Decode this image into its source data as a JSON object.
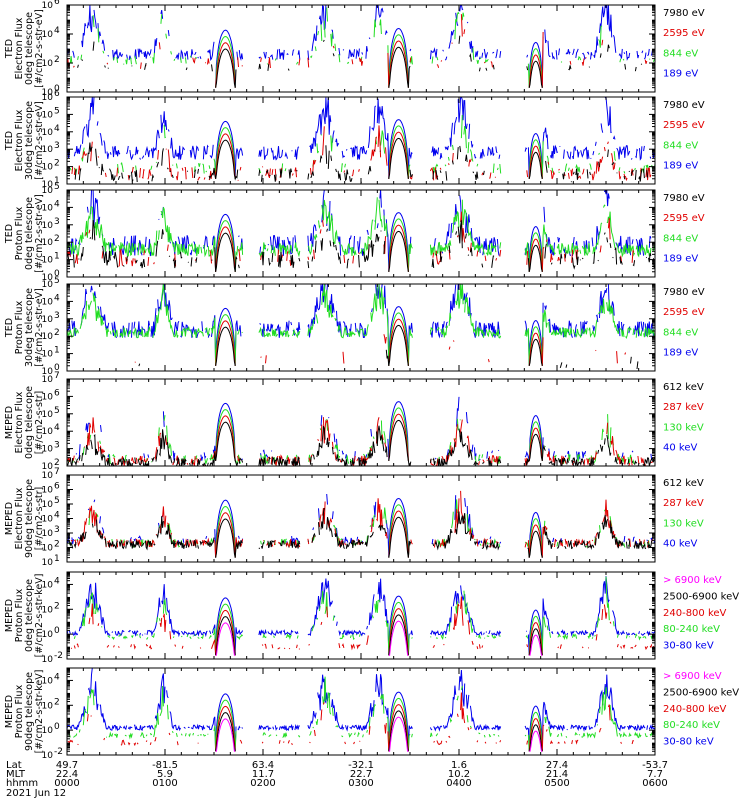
{
  "colors": {
    "black": "#000000",
    "red": "#e00000",
    "green": "#22dd22",
    "blue": "#0000ee",
    "magenta": "#ff00ff",
    "axis": "#000000"
  },
  "chart_data": [
    {
      "type": "line",
      "title": [
        "TED",
        "Electron Flux",
        "0deg telescope",
        "[#/cm2-s-str-eV]"
      ],
      "yscale": "log",
      "yticks": [
        "10",
        "10",
        "10",
        "10"
      ],
      "ytick_exps": [
        "0",
        "2",
        "4",
        "6"
      ],
      "ylim": [
        1,
        1000000
      ],
      "series": [
        {
          "name": "7980 eV",
          "color": "black",
          "base": 1.7,
          "noise": 0.3,
          "density": 0.25
        },
        {
          "name": "2595 eV",
          "color": "red",
          "base": 2.0,
          "noise": 0.4,
          "density": 0.3
        },
        {
          "name": "844 eV",
          "color": "green",
          "base": 2.2,
          "noise": 0.3,
          "density": 0.35
        },
        {
          "name": "189 eV",
          "color": "blue",
          "base": 2.6,
          "noise": 0.4,
          "density": 0.7
        }
      ]
    },
    {
      "type": "line",
      "title": [
        "TED",
        "Electron Flux",
        "30deg telescope",
        "[#/cm2-s-str-eV]"
      ],
      "yscale": "log",
      "yticks": [
        "10",
        "10",
        "10",
        "10",
        "10",
        "10"
      ],
      "ytick_exps": [
        "1",
        "2",
        "3",
        "4",
        "5",
        "6"
      ],
      "ylim": [
        10,
        1000000
      ],
      "series": [
        {
          "name": "7980 eV",
          "color": "black",
          "base": 1.5,
          "noise": 0.4,
          "density": 0.5
        },
        {
          "name": "2595 eV",
          "color": "red",
          "base": 1.6,
          "noise": 0.4,
          "density": 0.5
        },
        {
          "name": "844 eV",
          "color": "green",
          "base": 1.9,
          "noise": 0.3,
          "density": 0.4
        },
        {
          "name": "189 eV",
          "color": "blue",
          "base": 2.8,
          "noise": 0.4,
          "density": 0.8
        }
      ]
    },
    {
      "type": "line",
      "title": [
        "TED",
        "Proton Flux",
        "0deg telescope",
        "[#/cm2-s-str-eV]"
      ],
      "yscale": "log",
      "yticks": [
        "10",
        "10",
        "10",
        "10",
        "10",
        "10"
      ],
      "ytick_exps": [
        "0",
        "1",
        "2",
        "3",
        "4",
        "5"
      ],
      "ylim": [
        1,
        100000
      ],
      "series": [
        {
          "name": "7980 eV",
          "color": "black",
          "base": 1.0,
          "noise": 0.5,
          "density": 0.5
        },
        {
          "name": "2595 eV",
          "color": "red",
          "base": 1.1,
          "noise": 0.5,
          "density": 0.4
        },
        {
          "name": "844 eV",
          "color": "green",
          "base": 1.6,
          "noise": 0.4,
          "density": 0.9
        },
        {
          "name": "189 eV",
          "color": "blue",
          "base": 1.8,
          "noise": 0.6,
          "density": 0.7
        }
      ]
    },
    {
      "type": "line",
      "title": [
        "TED",
        "Proton Flux",
        "30deg telescope",
        "[#/cm2-s-str-eV]"
      ],
      "yscale": "log",
      "yticks": [
        "10",
        "10",
        "10",
        "10",
        "10",
        "10"
      ],
      "ytick_exps": [
        "0",
        "1",
        "2",
        "3",
        "4",
        "5"
      ],
      "ylim": [
        1,
        100000
      ],
      "series": [
        {
          "name": "7980 eV",
          "color": "black",
          "base": 0.5,
          "noise": 0.4,
          "density": 0.15
        },
        {
          "name": "2595 eV",
          "color": "red",
          "base": 0.8,
          "noise": 0.4,
          "density": 0.15
        },
        {
          "name": "844 eV",
          "color": "green",
          "base": 2.2,
          "noise": 0.3,
          "density": 0.9
        },
        {
          "name": "189 eV",
          "color": "blue",
          "base": 2.4,
          "noise": 0.5,
          "density": 0.8
        }
      ]
    },
    {
      "type": "line",
      "title": [
        "MEPED",
        "Electron Flux",
        "0deg telescope",
        "[#/cm2-s-str]"
      ],
      "yscale": "log",
      "yticks": [
        "10",
        "10",
        "10",
        "10",
        "10",
        "10"
      ],
      "ytick_exps": [
        "2",
        "3",
        "4",
        "5",
        "6",
        "7"
      ],
      "ylim": [
        100,
        10000000
      ],
      "series": [
        {
          "name": "612 keV",
          "color": "black",
          "base": 2.2,
          "noise": 0.3,
          "density": 0.8
        },
        {
          "name": "287 keV",
          "color": "red",
          "base": 2.3,
          "noise": 0.3,
          "density": 0.7
        },
        {
          "name": "130 keV",
          "color": "green",
          "base": 2.4,
          "noise": 0.3,
          "density": 0.5
        },
        {
          "name": "40 keV",
          "color": "blue",
          "base": 2.6,
          "noise": 0.3,
          "density": 0.4
        }
      ]
    },
    {
      "type": "line",
      "title": [
        "MEPED",
        "Electron Flux",
        "90deg telescope",
        "[#/cm2-s-str]"
      ],
      "yscale": "log",
      "yticks": [
        "10",
        "10",
        "10",
        "10",
        "10",
        "10",
        "10"
      ],
      "ytick_exps": [
        "1",
        "2",
        "3",
        "4",
        "5",
        "6",
        "7"
      ],
      "ylim": [
        10,
        10000000
      ],
      "series": [
        {
          "name": "612 keV",
          "color": "black",
          "base": 2.2,
          "noise": 0.3,
          "density": 0.8
        },
        {
          "name": "287 keV",
          "color": "red",
          "base": 2.3,
          "noise": 0.3,
          "density": 0.7
        },
        {
          "name": "130 keV",
          "color": "green",
          "base": 2.3,
          "noise": 0.3,
          "density": 0.5
        },
        {
          "name": "40 keV",
          "color": "blue",
          "base": 2.5,
          "noise": 0.3,
          "density": 0.4
        }
      ]
    },
    {
      "type": "line",
      "title": [
        "MEPED",
        "Proton Flux",
        "0deg telescope",
        "[#/cm2-s-str-keV]"
      ],
      "yscale": "log",
      "yticks": [
        "10",
        "10",
        "10",
        "10"
      ],
      "ytick_exps": [
        "-2",
        "0",
        "2",
        "4"
      ],
      "ylim": [
        0.01,
        100000
      ],
      "series": [
        {
          "name": "> 6900 keV",
          "color": "magenta",
          "base": -2.3,
          "noise": 0.1,
          "density": 0.0
        },
        {
          "name": "2500-6900 keV",
          "color": "black",
          "base": -2.3,
          "noise": 0.1,
          "density": 0.0
        },
        {
          "name": "240-800 keV",
          "color": "red",
          "base": -1.0,
          "noise": 0.2,
          "density": 0.4
        },
        {
          "name": "80-240 keV",
          "color": "green",
          "base": -0.2,
          "noise": 0.2,
          "density": 0.6
        },
        {
          "name": "30-80 keV",
          "color": "blue",
          "base": 0.1,
          "noise": 0.2,
          "density": 0.9
        }
      ]
    },
    {
      "type": "line",
      "title": [
        "MEPED",
        "Proton Flux",
        "90deg telescope",
        "[#/cm2-s-str-keV]"
      ],
      "yscale": "log",
      "yticks": [
        "10",
        "10",
        "10",
        "10"
      ],
      "ytick_exps": [
        "-2",
        "0",
        "2",
        "4"
      ],
      "ylim": [
        0.01,
        100000
      ],
      "series": [
        {
          "name": "> 6900 keV",
          "color": "magenta",
          "base": -2.3,
          "noise": 0.1,
          "density": 0.0
        },
        {
          "name": "2500-6900 keV",
          "color": "black",
          "base": -2.3,
          "noise": 0.1,
          "density": 0.0
        },
        {
          "name": "240-800 keV",
          "color": "red",
          "base": -1.0,
          "noise": 0.2,
          "density": 0.4
        },
        {
          "name": "80-240 keV",
          "color": "green",
          "base": -0.4,
          "noise": 0.2,
          "density": 0.6
        },
        {
          "name": "30-80 keV",
          "color": "blue",
          "base": 0.2,
          "noise": 0.2,
          "density": 0.9
        }
      ]
    }
  ],
  "xaxis": {
    "row_labels": [
      "Lat",
      "MLT",
      "hhmm",
      "2021 Jun 12"
    ],
    "ticks": [
      {
        "lat": "49.7",
        "mlt": "22.4",
        "hhmm": "0000"
      },
      {
        "lat": "-81.5",
        "mlt": "5.9",
        "hhmm": "0100"
      },
      {
        "lat": "63.4",
        "mlt": "11.7",
        "hhmm": "0200"
      },
      {
        "lat": "-32.1",
        "mlt": "22.7",
        "hhmm": "0300"
      },
      {
        "lat": "1.6",
        "mlt": "10.2",
        "hhmm": "0400"
      },
      {
        "lat": "27.4",
        "mlt": "21.4",
        "hhmm": "0500"
      },
      {
        "lat": "-53.7",
        "mlt": "7.7",
        "hhmm": "0600"
      }
    ],
    "xlim": [
      0,
      360
    ],
    "units": "minutes since 0000"
  },
  "events": {
    "passes": [
      {
        "start": 7,
        "end": 24,
        "peak": 3.6
      },
      {
        "start": 53,
        "end": 65,
        "peak": 3.4
      },
      {
        "start": 89,
        "end": 104,
        "peak": 3.8
      },
      {
        "start": 149,
        "end": 167,
        "peak": 3.8
      },
      {
        "start": 183,
        "end": 199,
        "peak": 3.9
      },
      {
        "start": 232,
        "end": 250,
        "peak": 4.1
      },
      {
        "start": 283,
        "end": 296,
        "peak": 3.2
      },
      {
        "start": 323,
        "end": 337,
        "peak": 3.9
      }
    ],
    "domes": [
      {
        "center": 97,
        "width": 12,
        "peak": 3.3
      },
      {
        "center": 203,
        "width": 12,
        "peak": 3.4
      },
      {
        "center": 287,
        "width": 8,
        "peak": 2.6
      }
    ],
    "gaps": [
      {
        "start": 108,
        "end": 117
      },
      {
        "start": 143,
        "end": 147
      },
      {
        "start": 212,
        "end": 222
      },
      {
        "start": 266,
        "end": 280
      }
    ]
  }
}
